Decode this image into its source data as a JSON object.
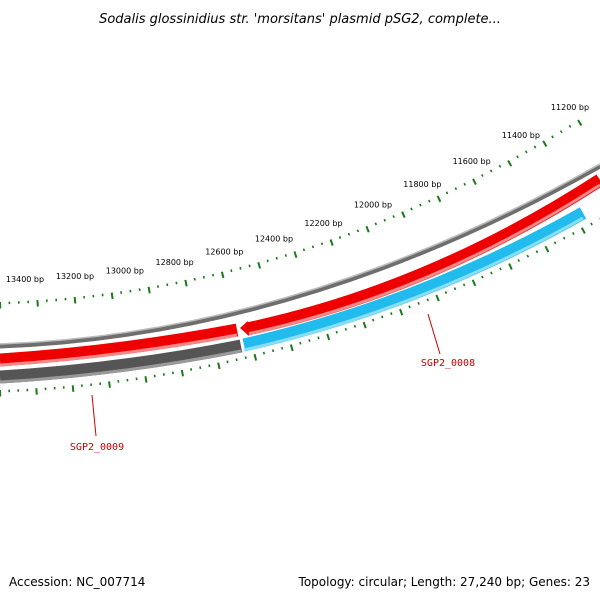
{
  "title": "Sodalis glossinidius str. 'morsitans' plasmid pSG2, complete...",
  "footer": {
    "accession": "Accession: NC_007714",
    "summary": "Topology: circular; Length: 27,240 bp; Genes: 23"
  },
  "colors": {
    "forward_gene": "#ee0000",
    "reverse_gene_highlight": "#22bbee",
    "reverse_gene_other": "#555555",
    "backbone": "#777777",
    "ticks": "#1a7a1a",
    "label_line": "#cc0000",
    "label_text": "#cc0000"
  },
  "ruler": {
    "unit": "bp",
    "labels": [
      "11200 bp",
      "11400 bp",
      "11600 bp",
      "11800 bp",
      "12000 bp",
      "12200 bp",
      "12400 bp",
      "12600 bp",
      "12800 bp",
      "13000 bp",
      "13200 bp",
      "13400 bp"
    ]
  },
  "genes": [
    {
      "name": "SGP2_0008",
      "strand": "reverse",
      "color_key": "reverse_gene_highlight"
    },
    {
      "name": "SGP2_0009",
      "strand": "reverse",
      "color_key": "reverse_gene_other"
    }
  ]
}
